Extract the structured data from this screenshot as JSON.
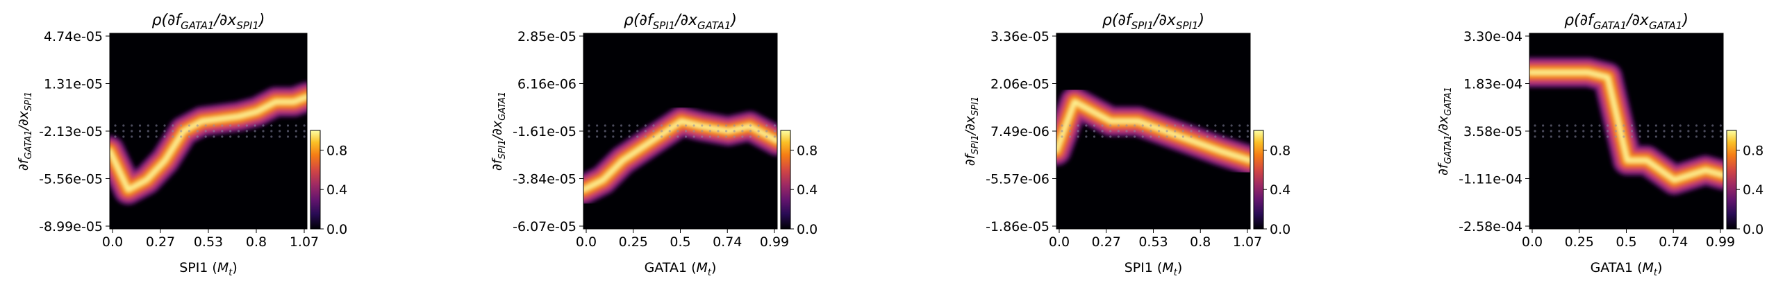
{
  "chart_data": [
    {
      "type": "heatmap",
      "title": "ρ(∂f_GATA1/∂x_SPI1)",
      "title_parts": [
        "ρ(∂f",
        "GATA1",
        "/∂x",
        "SPI1",
        ")"
      ],
      "xlabel_parts": [
        "SPI1 (",
        "M",
        "t",
        ")"
      ],
      "ylabel_parts": [
        "∂f",
        "GATA1",
        "/∂x",
        "SPI1"
      ],
      "xticks": [
        "0.0",
        "0.27",
        "0.53",
        "0.8",
        "1.07"
      ],
      "yticks": [
        "4.74e-05",
        "1.31e-05",
        "-2.13e-05",
        "-5.56e-05",
        "-8.99e-05"
      ],
      "xlim": [
        0,
        1.07
      ],
      "colorbar": {
        "ticks": [
          "0.0",
          "0.4",
          "0.8"
        ],
        "range": [
          0,
          1.0
        ],
        "colormap": "inferno"
      },
      "density_ridge": [
        [
          0.0,
          -0.2
        ],
        [
          0.1,
          -0.6
        ],
        [
          0.2,
          -0.5
        ],
        [
          0.3,
          -0.3
        ],
        [
          0.4,
          0.0
        ],
        [
          0.5,
          0.1
        ],
        [
          0.7,
          0.15
        ],
        [
          0.8,
          0.2
        ],
        [
          0.9,
          0.3
        ],
        [
          1.0,
          0.3
        ],
        [
          1.07,
          0.35
        ]
      ]
    },
    {
      "type": "heatmap",
      "title": "ρ(∂f_SPI1/∂x_GATA1)",
      "title_parts": [
        "ρ(∂f",
        "SPI1",
        "/∂x",
        "GATA1",
        ")"
      ],
      "xlabel_parts": [
        "GATA1 (",
        "M",
        "t",
        ")"
      ],
      "ylabel_parts": [
        "∂f",
        "SPI1",
        "/∂x",
        "GATA1"
      ],
      "xticks": [
        "0.0",
        "0.25",
        "0.5",
        "0.74",
        "0.99"
      ],
      "yticks": [
        "2.85e-05",
        "6.16e-06",
        "-1.61e-05",
        "-3.84e-05",
        "-6.07e-05"
      ],
      "xlim": [
        0,
        0.99
      ],
      "colorbar": {
        "ticks": [
          "0.0",
          "0.4",
          "0.8"
        ],
        "range": [
          0,
          1.0
        ],
        "colormap": "inferno"
      },
      "density_ridge": [
        [
          0.0,
          -0.6
        ],
        [
          0.1,
          -0.5
        ],
        [
          0.2,
          -0.3
        ],
        [
          0.35,
          -0.1
        ],
        [
          0.5,
          0.1
        ],
        [
          0.6,
          0.05
        ],
        [
          0.74,
          0.0
        ],
        [
          0.85,
          0.05
        ],
        [
          0.99,
          -0.1
        ]
      ]
    },
    {
      "type": "heatmap",
      "title": "ρ(∂f_SPI1/∂x_SPI1)",
      "title_parts": [
        "ρ(∂f",
        "SPI1",
        "/∂x",
        "SPI1",
        ")"
      ],
      "xlabel_parts": [
        "SPI1 (",
        "M",
        "t",
        ")"
      ],
      "ylabel_parts": [
        "∂f",
        "SPI1",
        "/∂x",
        "SPI1"
      ],
      "xticks": [
        "0.0",
        "0.27",
        "0.53",
        "0.8",
        "1.07"
      ],
      "yticks": [
        "3.36e-05",
        "2.06e-05",
        "7.49e-06",
        "-5.57e-06",
        "-1.86e-05"
      ],
      "xlim": [
        0,
        1.07
      ],
      "colorbar": {
        "ticks": [
          "0.0",
          "0.4",
          "0.8"
        ],
        "range": [
          0,
          1.0
        ],
        "colormap": "inferno"
      },
      "density_ridge": [
        [
          0.0,
          -0.2
        ],
        [
          0.1,
          0.3
        ],
        [
          0.2,
          0.2
        ],
        [
          0.3,
          0.1
        ],
        [
          0.45,
          0.1
        ],
        [
          0.6,
          0.0
        ],
        [
          0.75,
          -0.1
        ],
        [
          0.9,
          -0.2
        ],
        [
          1.07,
          -0.3
        ]
      ]
    },
    {
      "type": "heatmap",
      "title": "ρ(∂f_GATA1/∂x_GATA1)",
      "title_parts": [
        "ρ(∂f",
        "GATA1",
        "/∂x",
        "GATA1",
        ")"
      ],
      "xlabel_parts": [
        "GATA1 (",
        "M",
        "t",
        ")"
      ],
      "ylabel_parts": [
        "∂f",
        "GATA1",
        "/∂x",
        "GATA1"
      ],
      "xticks": [
        "0.0",
        "0.25",
        "0.5",
        "0.74",
        "0.99"
      ],
      "yticks": [
        "3.30e-04",
        "1.83e-04",
        "3.58e-05",
        "-1.11e-04",
        "-2.58e-04"
      ],
      "xlim": [
        0,
        0.99
      ],
      "colorbar": {
        "ticks": [
          "0.0",
          "0.4",
          "0.8"
        ],
        "range": [
          0,
          1.0
        ],
        "colormap": "inferno"
      },
      "density_ridge": [
        [
          0.0,
          0.6
        ],
        [
          0.1,
          0.6
        ],
        [
          0.2,
          0.6
        ],
        [
          0.3,
          0.6
        ],
        [
          0.4,
          0.55
        ],
        [
          0.5,
          -0.3
        ],
        [
          0.6,
          -0.3
        ],
        [
          0.74,
          -0.5
        ],
        [
          0.9,
          -0.4
        ],
        [
          0.99,
          -0.45
        ]
      ]
    }
  ]
}
